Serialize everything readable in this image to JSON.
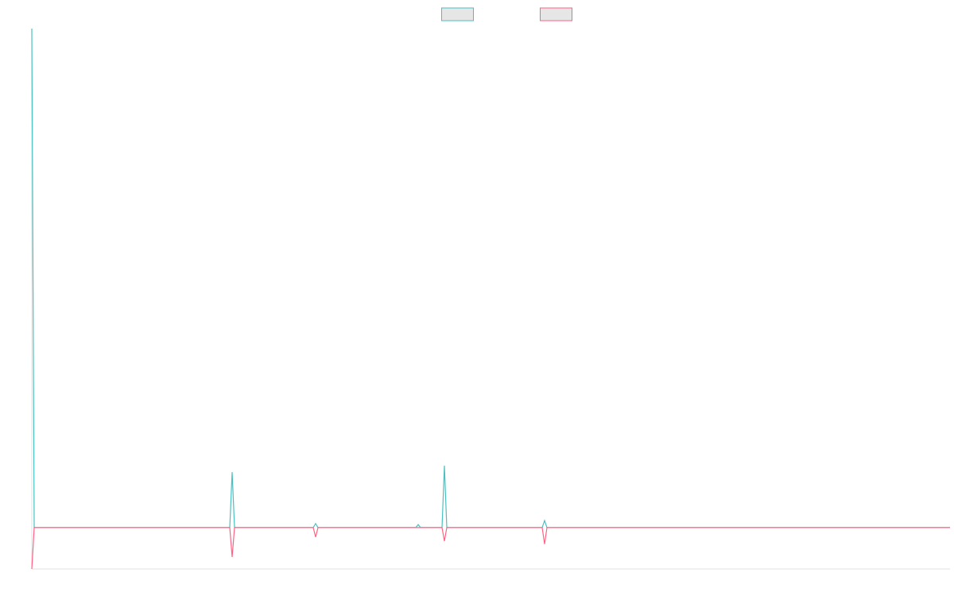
{
  "chart_data": {
    "type": "line",
    "x": [
      0,
      1,
      83,
      84,
      85,
      118,
      119,
      120,
      161,
      162,
      163,
      172,
      173,
      174,
      214,
      215,
      216,
      385
    ],
    "series": [
      {
        "color": "#4bc0c0",
        "values": [
          100,
          0,
          0,
          11.1,
          0,
          0,
          0.8,
          0,
          0,
          0.6,
          0,
          0,
          12.4,
          0,
          0,
          1.4,
          0,
          0
        ]
      },
      {
        "color": "#ff6384",
        "values": [
          -8.3,
          0,
          0,
          -5.9,
          0,
          0,
          -1.9,
          0,
          0,
          0,
          0,
          0,
          -2.7,
          0,
          0,
          -3.3,
          0,
          0
        ]
      }
    ],
    "xlim": [
      0,
      385
    ],
    "ylim": [
      -8.3,
      100
    ],
    "legend": "top"
  }
}
